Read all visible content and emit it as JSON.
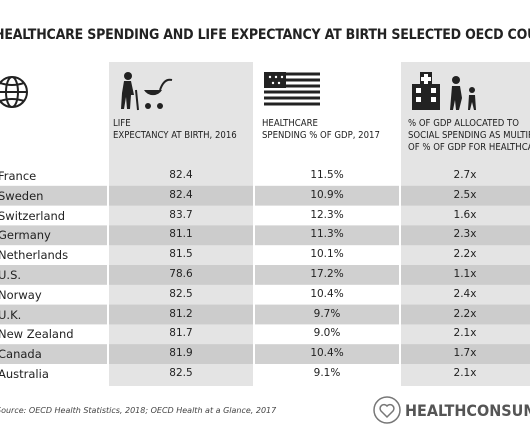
{
  "title": "HEALTHCARE SPENDING AND LIFE EXPECTANCY AT BIRTH SELECTED OECD COUNTRIES",
  "table": {
    "headers": [
      "LIFE\nEXPECTANCY AT BIRTH, 2016",
      "HEALTHCARE\nSPENDING % OF GDP, 2017",
      "% OF GDP ALLOCATED TO\nSOCIAL SPENDING AS MULTIPLE\nOF % OF GDP FOR HEALTHCARE"
    ],
    "rows": [
      [
        "France",
        "82.4",
        "11.5%",
        "2.7x"
      ],
      [
        "Sweden",
        "82.4",
        "10.9%",
        "2.5x"
      ],
      [
        "Switzerland",
        "83.7",
        "12.3%",
        "1.6x"
      ],
      [
        "Germany",
        "81.1",
        "11.3%",
        "2.3x"
      ],
      [
        "Netherlands",
        "81.5",
        "10.1%",
        "2.2x"
      ],
      [
        "U.S.",
        "78.6",
        "17.2%",
        "1.1x"
      ],
      [
        "Norway",
        "82.5",
        "10.4%",
        "2.4x"
      ],
      [
        "U.K.",
        "81.2",
        "9.7%",
        "2.2x"
      ],
      [
        "New Zealand",
        "81.7",
        "9.0%",
        "2.1x"
      ],
      [
        "Canada",
        "81.9",
        "10.4%",
        "1.7x"
      ],
      [
        "Australia",
        "82.5",
        "9.1%",
        "2.1x"
      ]
    ]
  },
  "source": "Source: OECD Health Statistics, 2018; OECD Health at a Glance, 2017",
  "logo": "HEALTHCONSUMER"
}
